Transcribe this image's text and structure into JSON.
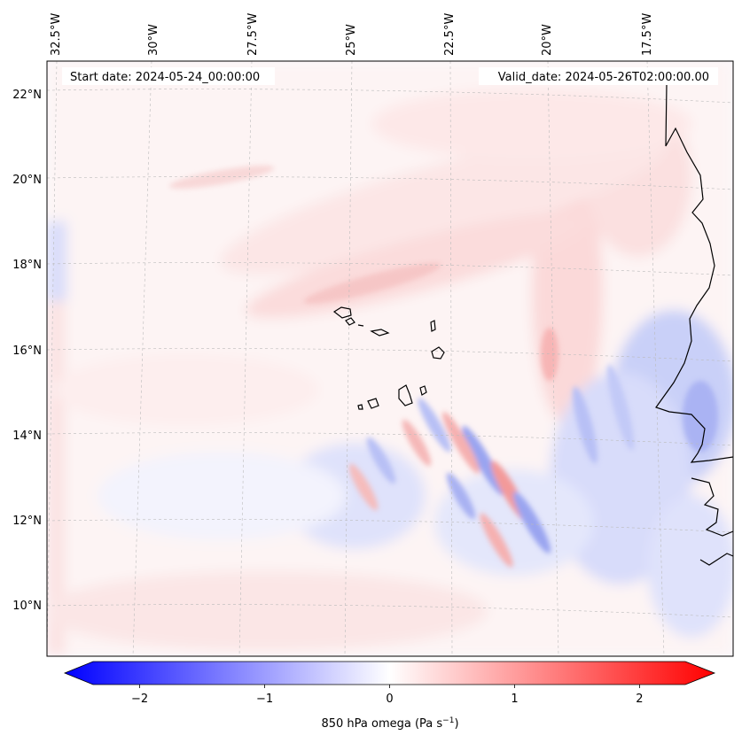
{
  "header": {
    "start_date": "Start date: 2024-05-24_00:00:00",
    "valid_date": "Valid_date: 2024-05-26T02:00:00.00"
  },
  "map": {
    "projection": "lambert-conformal",
    "lon_labels": [
      "32.5°W",
      "30°W",
      "27.5°W",
      "25°W",
      "22.5°W",
      "20°W",
      "17.5°W"
    ],
    "lat_labels": [
      "22°N",
      "20°N",
      "18°N",
      "16°N",
      "14°N",
      "12°N",
      "10°N"
    ],
    "field": "850 hPa omega",
    "colormap": "bwr",
    "coastline_color": "#000000",
    "gridline_color": "#bbbbbb"
  },
  "colorbar": {
    "ticks": [
      "−2",
      "−1",
      "0",
      "1",
      "2"
    ],
    "tick_values": [
      -2,
      -1,
      0,
      1,
      2
    ],
    "range": [
      -2.6,
      2.6
    ],
    "label_main": "850 hPa omega (Pa s",
    "label_sup": "−1",
    "label_end": ")",
    "min_color": "#0000ff",
    "mid_color": "#ffffff",
    "max_color": "#ff0000"
  }
}
